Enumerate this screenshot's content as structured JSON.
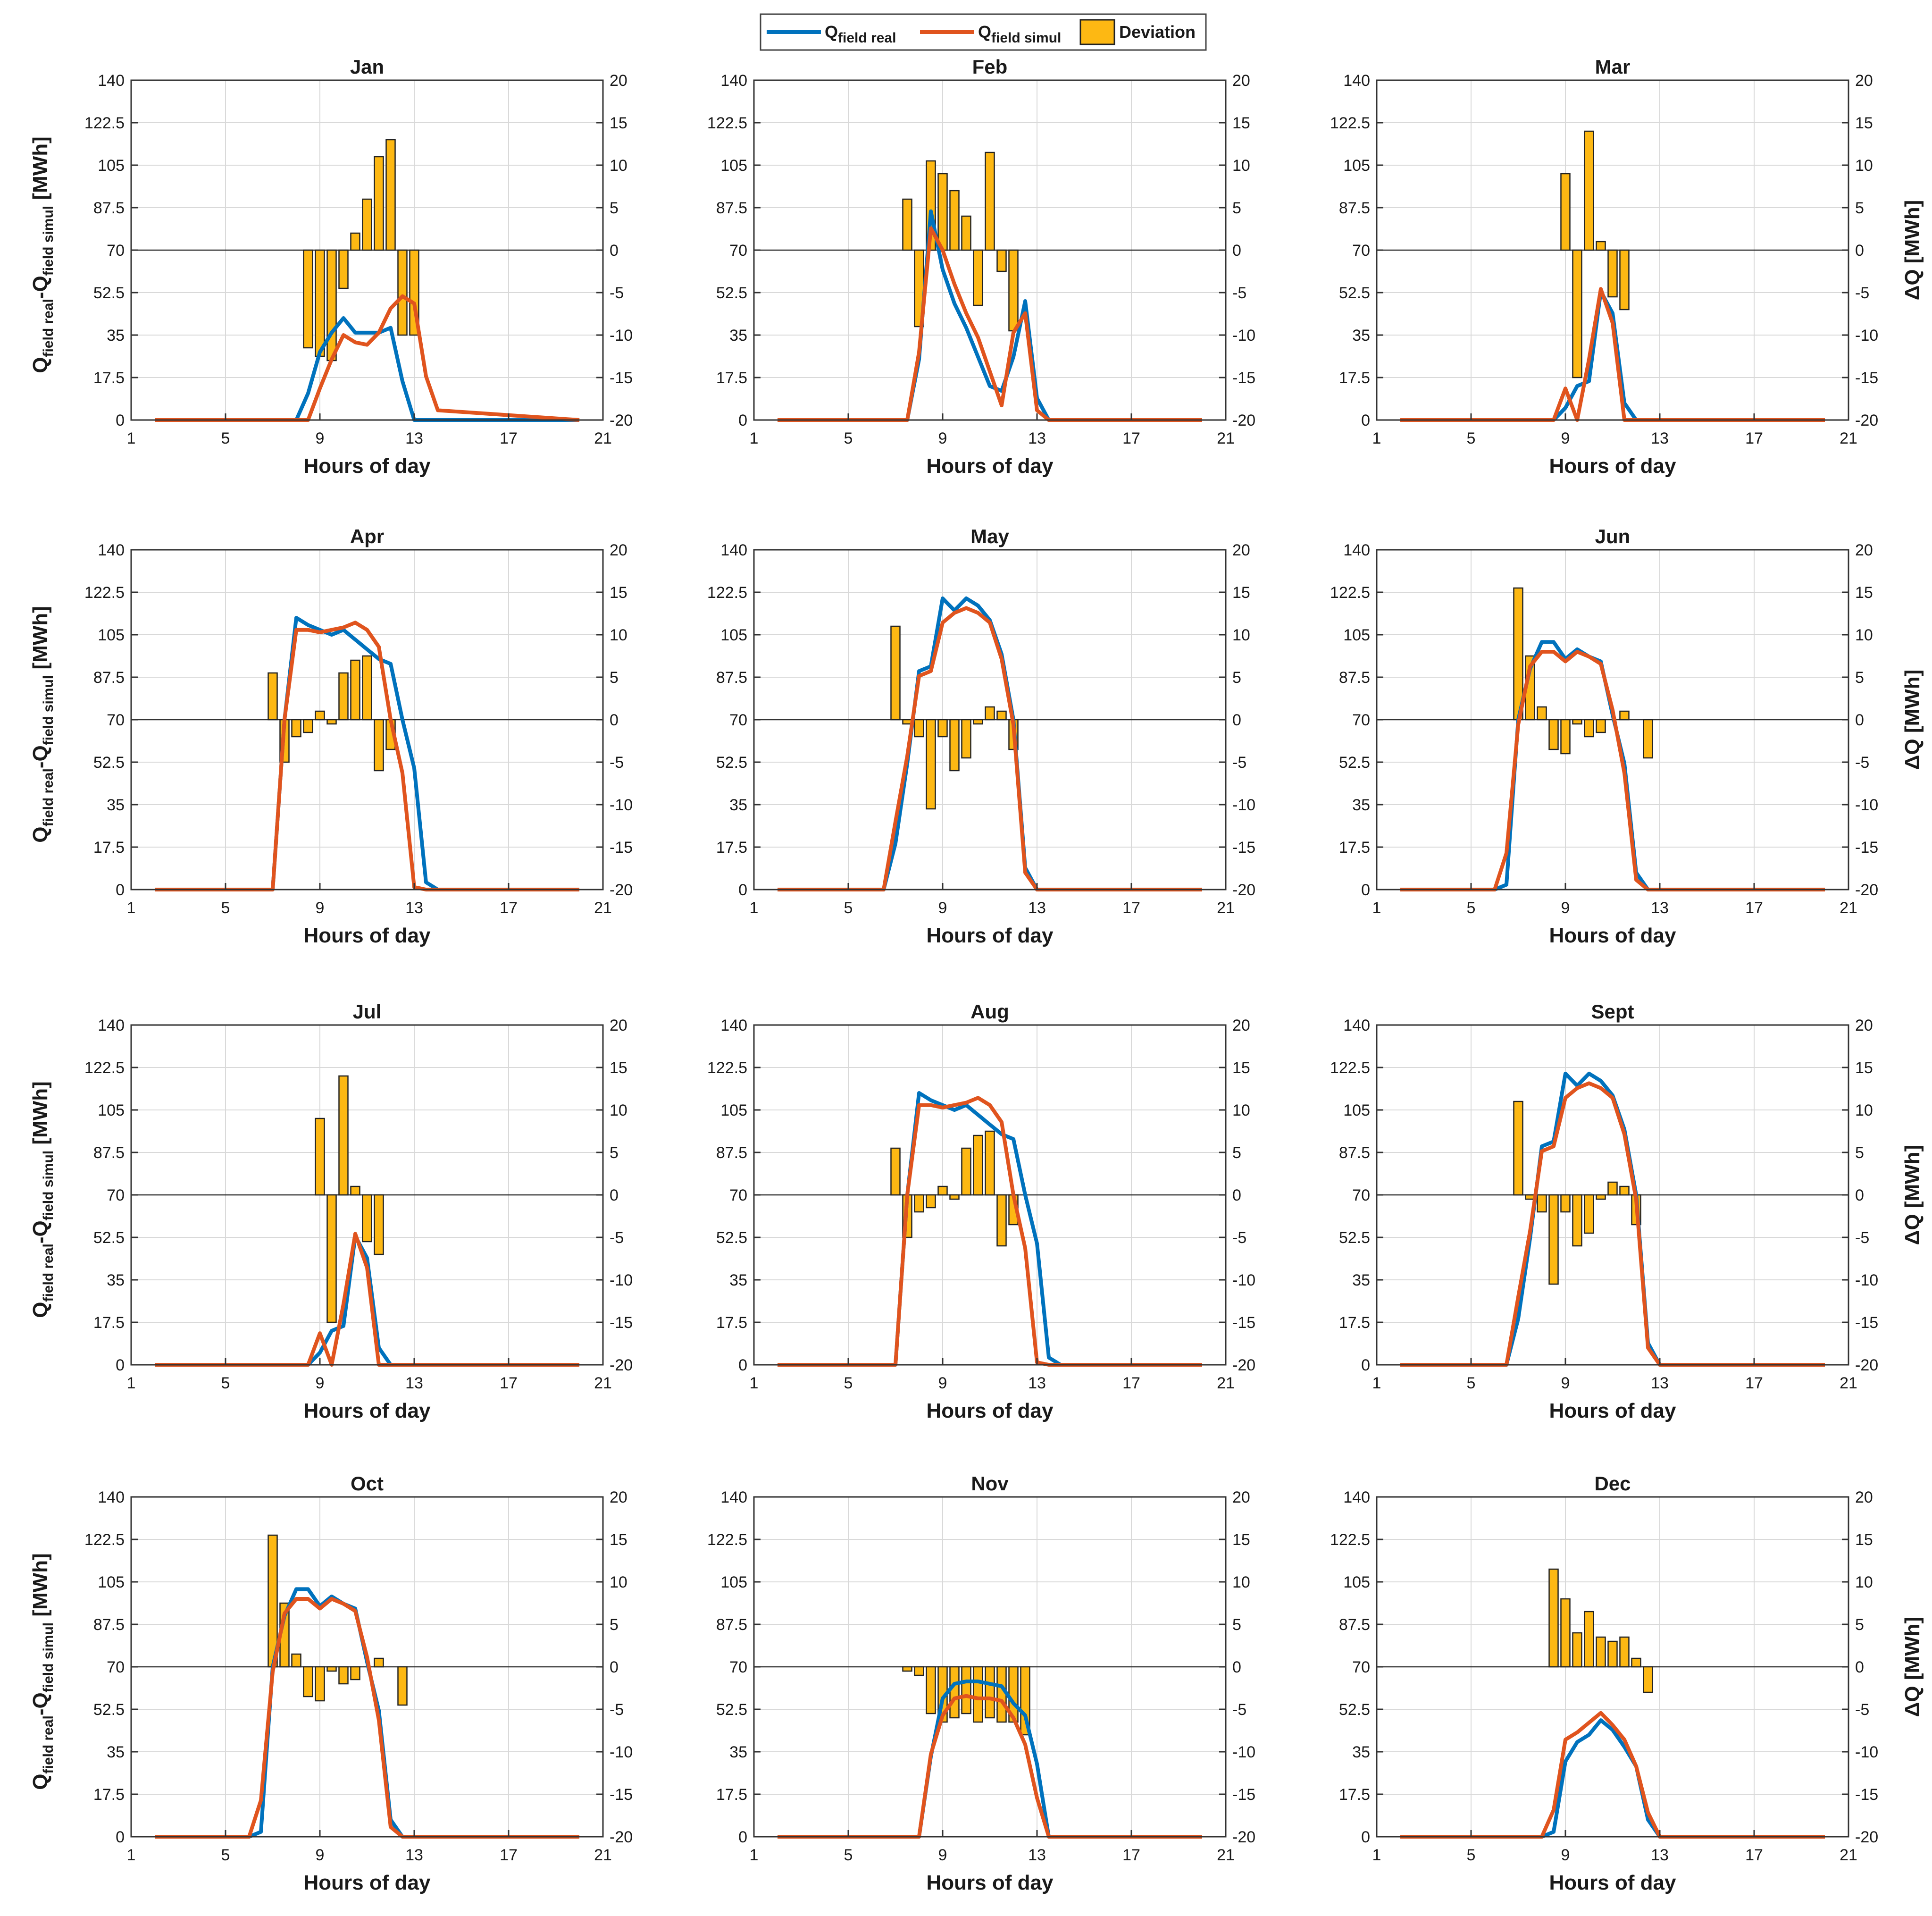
{
  "legend": {
    "real_label": "Q",
    "real_sub": "field real",
    "simul_label": "Q",
    "simul_sub": "field simul",
    "deviation_label": "Deviation"
  },
  "axes": {
    "xlabel": "Hours of day",
    "ylabel_left_main": "Q",
    "ylabel_left_sub1": "field real",
    "ylabel_left_dash": "-",
    "ylabel_left_main2": "Q",
    "ylabel_left_sub2": "field simul",
    "ylabel_left_unit": " [MWh]",
    "ylabel_right": "ΔQ  [MWh]",
    "x_ticks": [
      1,
      5,
      9,
      13,
      17,
      21
    ],
    "y_left_ticks": [
      "0",
      "17.5",
      "35",
      "52.5",
      "70",
      "87.5",
      "105",
      "122.5",
      "140"
    ],
    "y_right_ticks": [
      "-20",
      "-15",
      "-10",
      "-5",
      "0",
      "5",
      "10",
      "15",
      "20"
    ],
    "xlim": [
      1,
      21
    ],
    "ylim_left": [
      0,
      140
    ],
    "ylim_right": [
      -20,
      20
    ]
  },
  "colors": {
    "real": "#0072BD",
    "simul": "#E0541E",
    "bar": "#FDB813",
    "bar_edge": "#222222",
    "grid": "#d9d9d9"
  },
  "chart_data": [
    {
      "type": "line+bar",
      "title": "Jan",
      "hours": [
        8,
        8.5,
        9,
        9.5,
        10,
        10.5,
        11,
        11.5,
        12,
        12.5,
        13,
        13.5,
        14
      ],
      "real": [
        0,
        11,
        28,
        36,
        42,
        36,
        36,
        36,
        38,
        16,
        0,
        0,
        0
      ],
      "simul": [
        0,
        0,
        13,
        25,
        35,
        32,
        31,
        36,
        46,
        51,
        48,
        18,
        4
      ],
      "dev_hours": [
        8.5,
        9,
        9.5,
        10,
        10.5,
        11,
        11.5,
        12,
        12.5,
        13
      ],
      "deviation": [
        -11.5,
        -12.5,
        -13,
        -4.5,
        2,
        6,
        11,
        13,
        -10,
        -10
      ],
      "real_y_bars": []
    },
    {
      "type": "line+bar",
      "title": "Feb",
      "hours": [
        7,
        7.5,
        8,
        8.5,
        9,
        9.5,
        10,
        10.5,
        11,
        11.5,
        12,
        12.5,
        13,
        13.5,
        14,
        14.5,
        15
      ],
      "real": [
        0,
        0,
        25,
        86,
        62,
        48,
        38,
        26,
        14,
        12,
        26,
        49,
        9,
        0,
        0,
        0,
        0
      ],
      "simul": [
        0,
        0,
        28,
        79,
        70,
        56,
        44,
        34,
        20,
        6,
        36,
        44,
        4,
        0,
        0,
        0,
        0
      ],
      "dev_hours": [
        7.5,
        8,
        8.5,
        9,
        9.5,
        10,
        10.5,
        11,
        11.5,
        12,
        12.5,
        13
      ],
      "deviation": [
        6,
        -9,
        10.5,
        9,
        7,
        4,
        -6.5,
        11.5,
        -2.5,
        -9.5,
        0,
        0
      ]
    },
    {
      "type": "line+bar",
      "title": "Mar",
      "hours": [
        8,
        8.5,
        9,
        9.5,
        10,
        10.5,
        11,
        11.5,
        12,
        12.5,
        13,
        13.5
      ],
      "real": [
        0,
        0,
        5,
        14,
        16,
        53,
        44,
        7,
        0,
        0,
        0,
        0
      ],
      "simul": [
        0,
        0,
        13,
        0,
        25,
        54,
        40,
        0,
        0,
        0,
        0,
        0
      ],
      "dev_hours": [
        9,
        9.5,
        10,
        10.5,
        11,
        11.5
      ],
      "deviation": [
        9,
        -15,
        14,
        1,
        -5.5,
        -7
      ]
    },
    {
      "type": "line+bar",
      "title": "Apr",
      "hours": [
        6.5,
        7,
        7.5,
        8,
        8.5,
        9,
        9.5,
        10,
        10.5,
        11,
        11.5,
        12,
        12.5,
        13,
        13.5,
        14,
        14.5,
        15,
        15.5,
        16
      ],
      "real": [
        0,
        0,
        70,
        112,
        109,
        107,
        105,
        107,
        103,
        99,
        95,
        93,
        70,
        50,
        3,
        0,
        0,
        0,
        0,
        0
      ],
      "simul": [
        0,
        0,
        70,
        107,
        107,
        106,
        107,
        108,
        110,
        107,
        100,
        70,
        48,
        1,
        0,
        0,
        0,
        0,
        0,
        0
      ],
      "dev_hours": [
        7,
        7.5,
        8,
        8.5,
        9,
        9.5,
        10,
        10.5,
        11,
        11.5,
        12,
        12.5,
        13
      ],
      "deviation": [
        5.5,
        -5,
        -2,
        -1.5,
        1,
        -0.5,
        5.5,
        7,
        7.5,
        -6,
        -3.5,
        0,
        0
      ]
    },
    {
      "type": "line+bar",
      "title": "May",
      "hours": [
        6,
        6.5,
        7,
        7.5,
        8,
        8.5,
        9,
        9.5,
        10,
        10.5,
        11,
        11.5,
        12,
        12.5,
        13,
        13.5,
        14,
        14.5,
        15,
        15.5,
        16
      ],
      "real": [
        0,
        0,
        19,
        52,
        90,
        92,
        120,
        115,
        120,
        117,
        111,
        97,
        70,
        9,
        0,
        0,
        0,
        0,
        0,
        0,
        0
      ],
      "simul": [
        0,
        0,
        28,
        55,
        88,
        90,
        110,
        114,
        116,
        114,
        110,
        95,
        68,
        7,
        0,
        0,
        0,
        0,
        0,
        0,
        0
      ],
      "dev_hours": [
        7,
        7.5,
        8,
        8.5,
        9,
        9.5,
        10,
        10.5,
        11,
        11.5,
        12,
        12.5,
        13,
        13.5
      ],
      "deviation": [
        11,
        -0.5,
        -2,
        -10.5,
        -2,
        -6,
        -4.5,
        -0.5,
        1.5,
        1,
        -3.5,
        0,
        0,
        0
      ]
    },
    {
      "type": "line+bar",
      "title": "Jun",
      "hours": [
        6,
        6.5,
        7,
        7.5,
        8,
        8.5,
        9,
        9.5,
        10,
        10.5,
        11,
        11.5,
        12,
        12.5,
        13,
        13.5,
        14,
        14.5,
        15,
        15.5,
        16
      ],
      "real": [
        0,
        2,
        70,
        91,
        102,
        102,
        95,
        99,
        96,
        94,
        72,
        52,
        7,
        0,
        0,
        0,
        0,
        0,
        0,
        0,
        0
      ],
      "simul": [
        0,
        15,
        68,
        92,
        98,
        98,
        94,
        98,
        96,
        93,
        74,
        48,
        4,
        0,
        0,
        0,
        0,
        0,
        0,
        0,
        0
      ],
      "dev_hours": [
        7,
        7.5,
        8,
        8.5,
        9,
        9.5,
        10,
        10.5,
        11,
        11.5,
        12,
        12.5
      ],
      "deviation": [
        15.5,
        7.5,
        1.5,
        -3.5,
        -4,
        -0.5,
        -2,
        -1.5,
        0,
        1,
        0,
        -4.5
      ]
    },
    {
      "type": "line+bar",
      "title": "Jul",
      "hours": [
        8,
        8.5,
        9,
        9.5,
        10,
        10.5,
        11,
        11.5,
        12,
        12.5,
        13,
        13.5
      ],
      "real": [
        0,
        0,
        5,
        14,
        16,
        53,
        44,
        7,
        0,
        0,
        0,
        0
      ],
      "simul": [
        0,
        0,
        13,
        0,
        25,
        54,
        40,
        0,
        0,
        0,
        0,
        0
      ],
      "dev_hours": [
        9,
        9.5,
        10,
        10.5,
        11,
        11.5
      ],
      "deviation": [
        9,
        -15,
        14,
        1,
        -5.5,
        -7
      ]
    },
    {
      "type": "line+bar",
      "title": "Aug",
      "hours": [
        6.5,
        7,
        7.5,
        8,
        8.5,
        9,
        9.5,
        10,
        10.5,
        11,
        11.5,
        12,
        12.5,
        13,
        13.5,
        14,
        14.5,
        15,
        15.5,
        16
      ],
      "real": [
        0,
        0,
        70,
        112,
        109,
        107,
        105,
        107,
        103,
        99,
        95,
        93,
        70,
        50,
        3,
        0,
        0,
        0,
        0,
        0
      ],
      "simul": [
        0,
        0,
        70,
        107,
        107,
        106,
        107,
        108,
        110,
        107,
        100,
        70,
        48,
        1,
        0,
        0,
        0,
        0,
        0,
        0
      ],
      "dev_hours": [
        7,
        7.5,
        8,
        8.5,
        9,
        9.5,
        10,
        10.5,
        11,
        11.5,
        12,
        12.5,
        13
      ],
      "deviation": [
        5.5,
        -5,
        -2,
        -1.5,
        1,
        -0.5,
        5.5,
        7,
        7.5,
        -6,
        -3.5,
        0,
        0
      ]
    },
    {
      "type": "line+bar",
      "title": "Sept",
      "hours": [
        6,
        6.5,
        7,
        7.5,
        8,
        8.5,
        9,
        9.5,
        10,
        10.5,
        11,
        11.5,
        12,
        12.5,
        13,
        13.5,
        14,
        14.5,
        15,
        15.5,
        16
      ],
      "real": [
        0,
        0,
        19,
        52,
        90,
        92,
        120,
        115,
        120,
        117,
        111,
        97,
        70,
        9,
        0,
        0,
        0,
        0,
        0,
        0,
        0
      ],
      "simul": [
        0,
        0,
        28,
        55,
        88,
        90,
        110,
        114,
        116,
        114,
        110,
        95,
        68,
        7,
        0,
        0,
        0,
        0,
        0,
        0,
        0
      ],
      "dev_hours": [
        7,
        7.5,
        8,
        8.5,
        9,
        9.5,
        10,
        10.5,
        11,
        11.5,
        12,
        12.5,
        13,
        13.5
      ],
      "deviation": [
        11,
        -0.5,
        -2,
        -10.5,
        -2,
        -6,
        -4.5,
        -0.5,
        1.5,
        1,
        -3.5,
        0,
        0,
        0
      ]
    },
    {
      "type": "line+bar",
      "title": "Oct",
      "hours": [
        6,
        6.5,
        7,
        7.5,
        8,
        8.5,
        9,
        9.5,
        10,
        10.5,
        11,
        11.5,
        12,
        12.5,
        13,
        13.5,
        14,
        14.5,
        15,
        15.5,
        16
      ],
      "real": [
        0,
        2,
        70,
        91,
        102,
        102,
        95,
        99,
        96,
        94,
        72,
        52,
        7,
        0,
        0,
        0,
        0,
        0,
        0,
        0,
        0
      ],
      "simul": [
        0,
        15,
        68,
        92,
        98,
        98,
        94,
        98,
        96,
        93,
        74,
        48,
        4,
        0,
        0,
        0,
        0,
        0,
        0,
        0,
        0
      ],
      "dev_hours": [
        7,
        7.5,
        8,
        8.5,
        9,
        9.5,
        10,
        10.5,
        11,
        11.5,
        12,
        12.5
      ],
      "deviation": [
        15.5,
        7.5,
        1.5,
        -3.5,
        -4,
        -0.5,
        -2,
        -1.5,
        0,
        1,
        0,
        -4.5
      ]
    },
    {
      "type": "line+bar",
      "title": "Nov",
      "hours": [
        7.5,
        8,
        8.5,
        9,
        9.5,
        10,
        10.5,
        11,
        11.5,
        12,
        12.5,
        13,
        13.5,
        14,
        14.5,
        15
      ],
      "real": [
        0,
        0,
        33,
        57,
        63,
        64,
        64,
        63,
        62,
        55,
        50,
        30,
        0,
        0,
        0,
        0
      ],
      "simul": [
        0,
        0,
        34,
        50,
        57,
        58,
        57,
        57,
        56,
        49,
        38,
        16,
        0,
        0,
        0,
        0
      ],
      "dev_hours": [
        7.5,
        8,
        8.5,
        9,
        9.5,
        10,
        10.5,
        11,
        11.5,
        12,
        12.5,
        13
      ],
      "deviation": [
        -0.5,
        -1,
        -5.5,
        -6.5,
        -6,
        -5.5,
        -6.5,
        -6,
        -6.5,
        -6.5,
        -8,
        0
      ]
    },
    {
      "type": "line+bar",
      "title": "Dec",
      "hours": [
        8,
        8.5,
        9,
        9.5,
        10,
        10.5,
        11,
        11.5,
        12,
        12.5,
        13,
        13.5,
        14
      ],
      "real": [
        0,
        2,
        31,
        39,
        42,
        48,
        44,
        37,
        29,
        7,
        0,
        0,
        0
      ],
      "simul": [
        0,
        11,
        40,
        43,
        47,
        51,
        46,
        40,
        29,
        10,
        0,
        0,
        0
      ],
      "dev_hours": [
        8.5,
        9,
        9.5,
        10,
        10.5,
        11,
        11.5,
        12,
        12.5,
        13
      ],
      "deviation": [
        11.5,
        8,
        4,
        6.5,
        3.5,
        3,
        3.5,
        1,
        -3,
        0
      ]
    }
  ]
}
